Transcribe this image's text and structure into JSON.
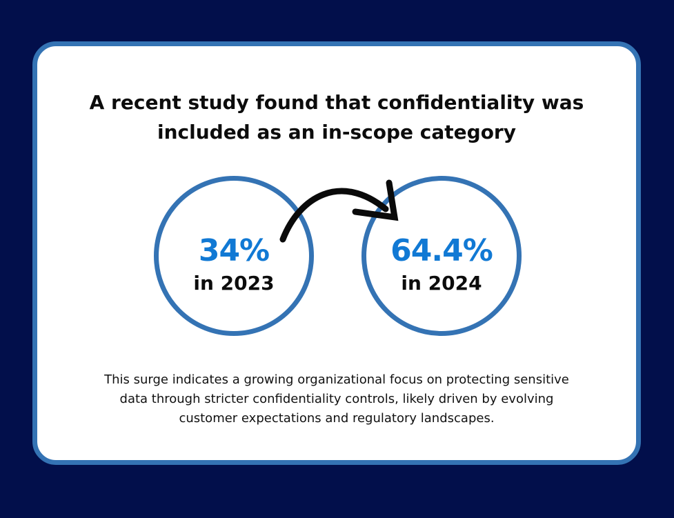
{
  "headline": {
    "line1": "A recent study found that confidentiality was",
    "line2": "included as an in-scope category"
  },
  "stats": [
    {
      "value": "34%",
      "year": "in 2023"
    },
    {
      "value": "64.4%",
      "year": "in 2024"
    }
  ],
  "description": {
    "line1": "This surge indicates a growing organizational focus on protecting sensitive",
    "line2": "data through stricter confidentiality controls, likely driven by evolving",
    "line3": "customer expectations and regulatory landscapes."
  },
  "colors": {
    "background": "#020f4b",
    "card": "#ffffff",
    "accent_border": "#3473b4",
    "stat_blue": "#1179d4",
    "text": "#0c0c0c"
  },
  "icons": {
    "arrow": "curved-arrow-icon"
  }
}
